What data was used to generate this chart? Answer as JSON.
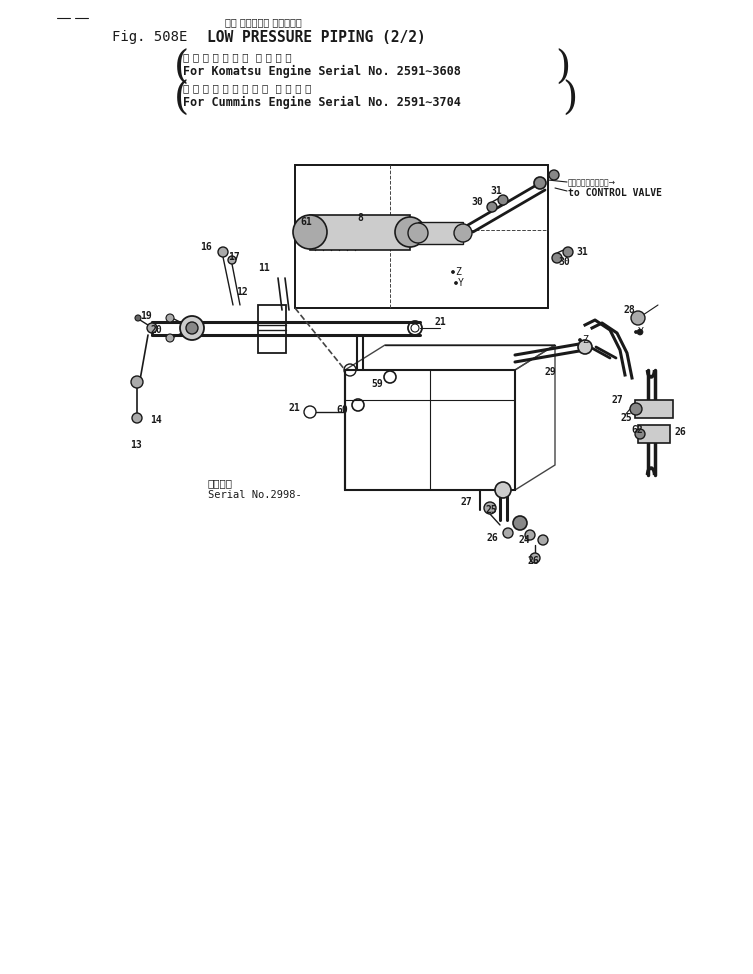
{
  "title_japanese": "ロー プレッシャ ハイピング",
  "title_line1_prefix": "Fig. 508E  ",
  "title_line1_main": "LOW PRESSURE PIPING (2/2)",
  "bracket1_jp": "小 松 エ ン ジ ン 用  適 用 号 等",
  "bracket1_en": "For Komatsu Engine Serial No. 2591∼3608",
  "bracket2_jp": "カ ミ ン ズ エ ン ジ ン 用  適 用 号 等",
  "bracket2_en": "For Cummins Engine Serial No. 2591∼3704",
  "serial_jp": "適用号等",
  "serial_en": "Serial No.2998-",
  "ctrl_valve_jp": "コントロールバルブ→",
  "ctrl_valve_en": "to CONTROL VALVE",
  "bg_color": "#ffffff",
  "line_color": "#1a1a1a",
  "dashed_color": "#444444"
}
